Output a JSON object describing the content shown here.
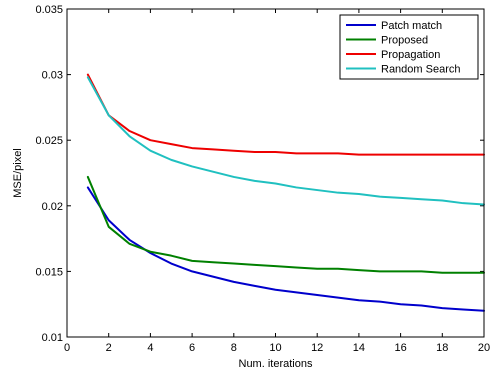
{
  "chart_data": {
    "type": "line",
    "title": "",
    "xlabel": "Num. iterations",
    "ylabel": "MSE/pixel",
    "xlim": [
      0,
      20
    ],
    "ylim": [
      0.01,
      0.035
    ],
    "xticks": [
      0,
      2,
      4,
      6,
      8,
      10,
      12,
      14,
      16,
      18,
      20
    ],
    "yticks": [
      0.01,
      0.015,
      0.02,
      0.025,
      0.03,
      0.035
    ],
    "ytick_labels": [
      "0.01",
      "0.015",
      "0.02",
      "0.025",
      "0.03",
      "0.035"
    ],
    "grid": false,
    "legend_position": "top-right",
    "x": [
      1,
      2,
      3,
      4,
      5,
      6,
      7,
      8,
      9,
      10,
      11,
      12,
      13,
      14,
      15,
      16,
      17,
      18,
      19,
      20
    ],
    "series": [
      {
        "name": "Patch match",
        "color": "#0000cc",
        "values": [
          0.0214,
          0.0189,
          0.0174,
          0.0164,
          0.0156,
          0.015,
          0.0146,
          0.0142,
          0.0139,
          0.0136,
          0.0134,
          0.0132,
          0.013,
          0.0128,
          0.0127,
          0.0125,
          0.0124,
          0.0122,
          0.0121,
          0.012
        ]
      },
      {
        "name": "Proposed",
        "color": "#008000",
        "values": [
          0.0222,
          0.0184,
          0.0171,
          0.0165,
          0.0162,
          0.0158,
          0.0157,
          0.0156,
          0.0155,
          0.0154,
          0.0153,
          0.0152,
          0.0152,
          0.0151,
          0.015,
          0.015,
          0.015,
          0.0149,
          0.0149,
          0.0149
        ]
      },
      {
        "name": "Propagation",
        "color": "#ee0000",
        "values": [
          0.03,
          0.0269,
          0.0257,
          0.025,
          0.0247,
          0.0244,
          0.0243,
          0.0242,
          0.0241,
          0.0241,
          0.024,
          0.024,
          0.024,
          0.0239,
          0.0239,
          0.0239,
          0.0239,
          0.0239,
          0.0239,
          0.0239
        ]
      },
      {
        "name": "Random Search",
        "color": "#20c0c0",
        "values": [
          0.0298,
          0.0269,
          0.0253,
          0.0242,
          0.0235,
          0.023,
          0.0226,
          0.0222,
          0.0219,
          0.0217,
          0.0214,
          0.0212,
          0.021,
          0.0209,
          0.0207,
          0.0206,
          0.0205,
          0.0204,
          0.0202,
          0.0201
        ]
      }
    ]
  }
}
